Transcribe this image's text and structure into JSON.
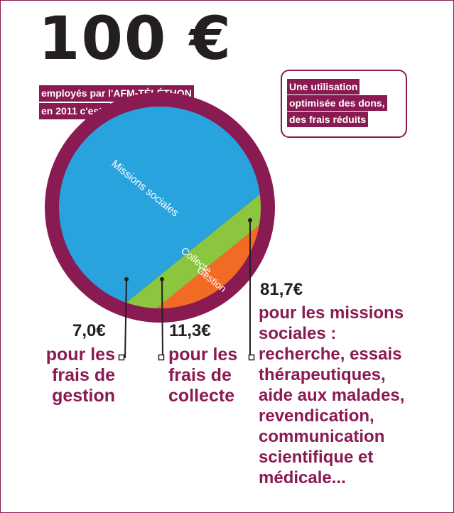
{
  "header": {
    "title": "100 €",
    "subtitle_line1": "employés par l'AFM-TÉLÉTHON",
    "subtitle_line2": "en 2011 c'est :"
  },
  "callout": {
    "line1": "Une utilisation",
    "line2": "optimisée des dons,",
    "line3": "des frais réduits"
  },
  "chart_data": {
    "type": "pie",
    "total": 100,
    "unit": "€",
    "slices": [
      {
        "name": "Missions sociales",
        "value": 81.7,
        "color": "#29a3dd"
      },
      {
        "name": "Collecte",
        "value": 11.3,
        "color": "#8cc63f"
      },
      {
        "name": "Gestion",
        "value": 7.0,
        "color": "#f26b25"
      }
    ],
    "ring_color": "#8a1a52"
  },
  "annotations": {
    "gestion": {
      "value": "7,0€",
      "lines": [
        "pour les",
        "frais de",
        "gestion"
      ]
    },
    "collecte": {
      "value": "11,3€",
      "lines": [
        "pour les",
        "frais de",
        "collecte"
      ]
    },
    "missions": {
      "value": "81,7€",
      "lines": [
        "pour les missions",
        "sociales :",
        "recherche, essais",
        "thérapeutiques,",
        "aide aux malades,",
        "revendication,",
        "communication",
        "scientifique et",
        "médicale..."
      ]
    }
  }
}
